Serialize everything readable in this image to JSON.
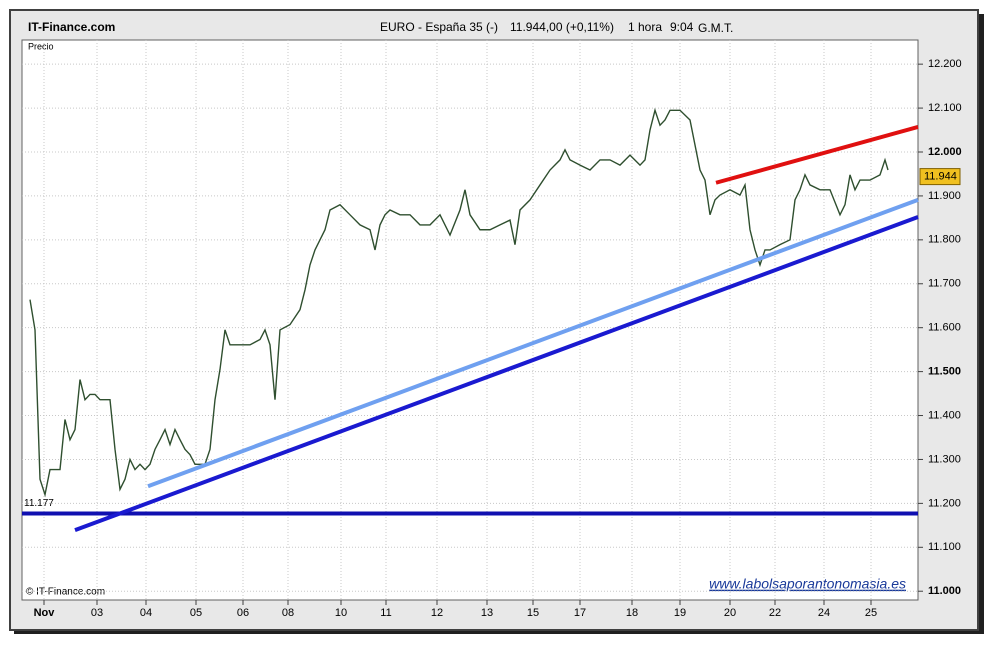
{
  "chart_data": {
    "type": "line",
    "source": "IT-Finance.com",
    "title": "EURO - España 35 (-)",
    "quote": "11.944,00 (+0,11%)",
    "interval": "1 hora",
    "time": "9:04",
    "timezone": "G.M.T.",
    "ylabel": "Precio",
    "copyright": "© IT-Finance.com",
    "watermark": "www.labolsaporantonomasia.es",
    "grid": true,
    "xlim": [
      0,
      896
    ],
    "ylim": [
      10980,
      12255
    ],
    "xticks": [
      {
        "value": 22,
        "label": "Nov"
      },
      {
        "value": 75,
        "label": "03"
      },
      {
        "value": 124,
        "label": "04"
      },
      {
        "value": 174,
        "label": "05"
      },
      {
        "value": 221,
        "label": "06"
      },
      {
        "value": 266,
        "label": "08"
      },
      {
        "value": 319,
        "label": "10"
      },
      {
        "value": 364,
        "label": "11"
      },
      {
        "value": 415,
        "label": "12"
      },
      {
        "value": 465,
        "label": "13"
      },
      {
        "value": 511,
        "label": "15"
      },
      {
        "value": 558,
        "label": "17"
      },
      {
        "value": 610,
        "label": "18"
      },
      {
        "value": 658,
        "label": "19"
      },
      {
        "value": 708,
        "label": "20"
      },
      {
        "value": 753,
        "label": "22"
      },
      {
        "value": 802,
        "label": "24"
      },
      {
        "value": 849,
        "label": "25"
      }
    ],
    "yticks": [
      {
        "value": 11000,
        "label": "11.000"
      },
      {
        "value": 11100,
        "label": "11.100"
      },
      {
        "value": 11200,
        "label": "11.200"
      },
      {
        "value": 11300,
        "label": "11.300"
      },
      {
        "value": 11400,
        "label": "11.400"
      },
      {
        "value": 11500,
        "label": "11.500"
      },
      {
        "value": 11600,
        "label": "11.600"
      },
      {
        "value": 11700,
        "label": "11.700"
      },
      {
        "value": 11800,
        "label": "11.800"
      },
      {
        "value": 11900,
        "label": "11.900"
      },
      {
        "value": 12000,
        "label": "12.000"
      },
      {
        "value": 12100,
        "label": "12.100"
      },
      {
        "value": 12200,
        "label": "12.200"
      }
    ],
    "last_price": {
      "value": 11944,
      "label": "11.944"
    },
    "series": [
      {
        "color": "#2f4f2f",
        "x": [
          8,
          13,
          18,
          23,
          28,
          33,
          38,
          43,
          48,
          53,
          58,
          63,
          68,
          73,
          78,
          88,
          93,
          98,
          103,
          108,
          113,
          118,
          123,
          128,
          133,
          138,
          143,
          148,
          153,
          158,
          163,
          168,
          173,
          183,
          188,
          193,
          198,
          203,
          208,
          218,
          228,
          238,
          243,
          248,
          253,
          258,
          268,
          278,
          283,
          288,
          293,
          298,
          303,
          308,
          318,
          328,
          338,
          348,
          353,
          358,
          363,
          368,
          378,
          388,
          398,
          408,
          418,
          428,
          438,
          443,
          448,
          458,
          468,
          478,
          488,
          493,
          498,
          508,
          518,
          528,
          538,
          543,
          548,
          558,
          568,
          578,
          588,
          598,
          608,
          618,
          623,
          628,
          633,
          638,
          643,
          648,
          658,
          668,
          678,
          683,
          688,
          693,
          698,
          708,
          718,
          723,
          728,
          733,
          738,
          743,
          748,
          758,
          768,
          773,
          778,
          783,
          788,
          798,
          808,
          818,
          823,
          828,
          833,
          838,
          848,
          858,
          863,
          866
        ],
        "values": [
          11664,
          11595,
          11255,
          11220,
          11277,
          11277,
          11277,
          11391,
          11345,
          11368,
          11482,
          11436,
          11448,
          11448,
          11436,
          11436,
          11323,
          11232,
          11255,
          11300,
          11277,
          11289,
          11277,
          11289,
          11323,
          11345,
          11368,
          11334,
          11368,
          11345,
          11323,
          11311,
          11289,
          11289,
          11323,
          11436,
          11505,
          11595,
          11561,
          11561,
          11561,
          11573,
          11595,
          11561,
          11436,
          11595,
          11607,
          11641,
          11686,
          11743,
          11777,
          11800,
          11823,
          11868,
          11880,
          11857,
          11834,
          11823,
          11777,
          11834,
          11857,
          11868,
          11857,
          11857,
          11834,
          11834,
          11857,
          11811,
          11868,
          11914,
          11857,
          11823,
          11823,
          11834,
          11845,
          11789,
          11868,
          11891,
          11925,
          11959,
          11982,
          12005,
          11982,
          11970,
          11959,
          11982,
          11982,
          11970,
          11993,
          11970,
          11982,
          12050,
          12095,
          12061,
          12073,
          12095,
          12095,
          12073,
          11959,
          11936,
          11857,
          11891,
          11902,
          11914,
          11902,
          11925,
          11823,
          11777,
          11743,
          11777,
          11777,
          11789,
          11800,
          11891,
          11914,
          11948,
          11925,
          11914,
          11914,
          11857,
          11880,
          11948,
          11914,
          11936,
          11936,
          11948,
          11982,
          11959
        ]
      }
    ],
    "trendlines": [
      {
        "color": "#1010b0",
        "x": [
          0,
          896
        ],
        "values": [
          11177,
          11177
        ],
        "label": "11.177"
      },
      {
        "color": "#1a1ad0",
        "x": [
          53,
          896
        ],
        "values": [
          11139,
          11852
        ]
      },
      {
        "color": "#6fa0f0",
        "x": [
          126,
          896
        ],
        "values": [
          11239,
          11891
        ]
      },
      {
        "color": "#e01010",
        "x": [
          694,
          896
        ],
        "values": [
          11930,
          12057
        ]
      }
    ]
  }
}
